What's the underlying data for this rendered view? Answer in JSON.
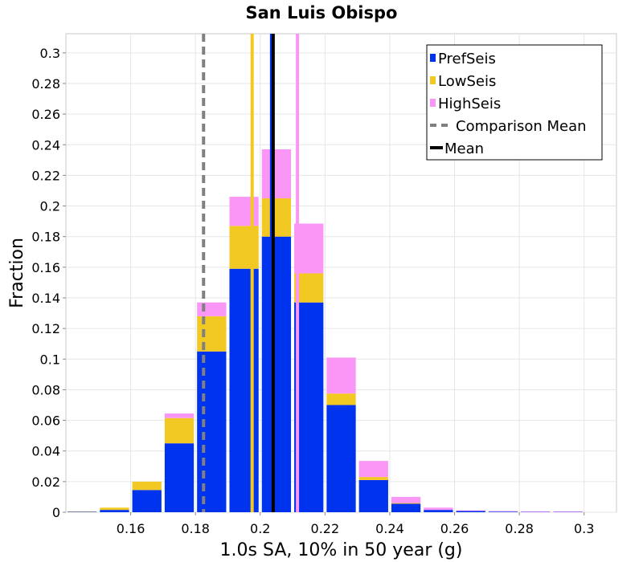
{
  "chart_data": {
    "type": "bar",
    "subtype": "stacked-histogram",
    "title": "San Luis Obispo",
    "xlabel": "1.0s SA, 10% in 50 year (g)",
    "ylabel": "Fraction",
    "xlim": [
      0.14,
      0.31
    ],
    "ylim": [
      0,
      0.3125
    ],
    "x_ticks": [
      0.16,
      0.18,
      0.2,
      0.22,
      0.24,
      0.26,
      0.28,
      0.3
    ],
    "x_tick_labels": [
      "0.16",
      "0.18",
      "0.2",
      "0.22",
      "0.24",
      "0.26",
      "0.28",
      "0.3"
    ],
    "y_ticks": [
      0,
      0.02,
      0.04,
      0.06,
      0.08,
      0.1,
      0.12,
      0.14,
      0.16,
      0.18,
      0.2,
      0.22,
      0.24,
      0.26,
      0.28,
      0.3
    ],
    "y_tick_labels": [
      "0",
      "0.02",
      "0.04",
      "0.06",
      "0.08",
      "0.1",
      "0.12",
      "0.14",
      "0.16",
      "0.18",
      "0.2",
      "0.22",
      "0.24",
      "0.26",
      "0.28",
      "0.3"
    ],
    "bin_width": 0.01,
    "bin_centers": [
      0.145,
      0.155,
      0.165,
      0.175,
      0.185,
      0.195,
      0.205,
      0.215,
      0.225,
      0.235,
      0.245,
      0.255,
      0.265,
      0.275,
      0.285,
      0.295,
      0.305
    ],
    "series": [
      {
        "name": "PrefSeis",
        "color": "#0033ee",
        "values": [
          0.0003,
          0.0015,
          0.0145,
          0.045,
          0.105,
          0.159,
          0.18,
          0.137,
          0.07,
          0.021,
          0.0055,
          0.0015,
          0.0008,
          0.0004,
          0.0002,
          0.0002,
          0.0
        ]
      },
      {
        "name": "LowSeis",
        "color": "#f2c823",
        "values": [
          0.0002,
          0.0015,
          0.0055,
          0.0165,
          0.023,
          0.028,
          0.025,
          0.019,
          0.0075,
          0.002,
          0.0005,
          0.0,
          0.0,
          0.0,
          0.0,
          0.0,
          0.0
        ]
      },
      {
        "name": "HighSeis",
        "color": "#fa96f5",
        "values": [
          0.0,
          0.0,
          0.0,
          0.003,
          0.009,
          0.019,
          0.032,
          0.0325,
          0.0235,
          0.0105,
          0.004,
          0.0015,
          0.0004,
          0.0004,
          0.0004,
          0.0004,
          0.0
        ]
      }
    ],
    "vertical_lines": [
      {
        "name": "LowSeis mean",
        "x": 0.1975,
        "color": "#f2c823",
        "style": "solid"
      },
      {
        "name": "HighSeis mean",
        "x": 0.2115,
        "color": "#fa96f5",
        "style": "solid"
      },
      {
        "name": "PrefSeis mean",
        "x": 0.2035,
        "color": "#0033ee",
        "style": "solid"
      },
      {
        "name": "Comparison Mean",
        "x": 0.1825,
        "color": "#808080",
        "style": "dashed"
      },
      {
        "name": "Mean",
        "x": 0.204,
        "color": "#000000",
        "style": "solid"
      }
    ],
    "legend": {
      "position": "top-right",
      "entries": [
        {
          "label": "PrefSeis",
          "color": "#0033ee",
          "kind": "box"
        },
        {
          "label": "LowSeis",
          "color": "#f2c823",
          "kind": "box"
        },
        {
          "label": "HighSeis",
          "color": "#fa96f5",
          "kind": "box"
        },
        {
          "label": "Comparison Mean",
          "color": "#808080",
          "kind": "dashed-line"
        },
        {
          "label": "Mean",
          "color": "#000000",
          "kind": "solid-line"
        }
      ]
    },
    "grid": true
  }
}
